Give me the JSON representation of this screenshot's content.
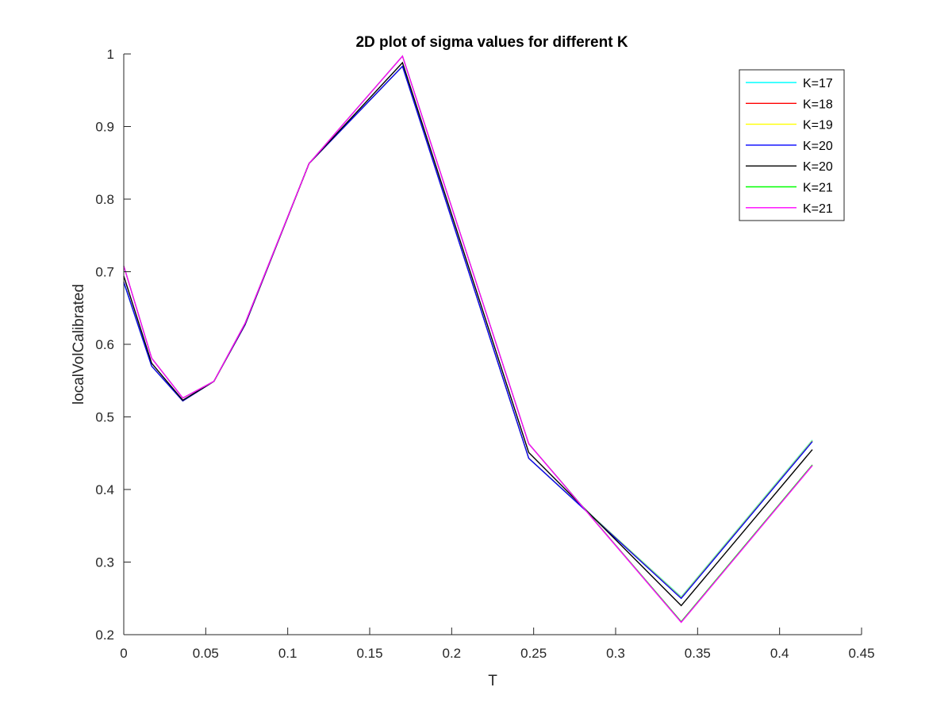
{
  "chart_data": {
    "type": "line",
    "title": "2D plot of sigma values for different K",
    "xlabel": "T",
    "ylabel": "localVolCalibrated",
    "xlim": [
      0,
      0.45
    ],
    "ylim": [
      0.2,
      1
    ],
    "xticks": [
      "0",
      "0.05",
      "0.1",
      "0.15",
      "0.2",
      "0.25",
      "0.3",
      "0.35",
      "0.4",
      "0.45"
    ],
    "yticks": [
      "0.2",
      "0.3",
      "0.4",
      "0.5",
      "0.6",
      "0.7",
      "0.8",
      "0.9",
      "1"
    ],
    "grid": false,
    "legend_position": "top-right",
    "x": [
      0,
      0.017,
      0.036,
      0.055,
      0.074,
      0.113,
      0.17,
      0.247,
      0.34,
      0.42
    ],
    "series": [
      {
        "name": "K=17",
        "color": "#00ffff",
        "values": [
          0.685,
          0.57,
          0.522,
          0.549,
          0.627,
          0.849,
          0.983,
          0.443,
          0.252,
          0.468
        ]
      },
      {
        "name": "K=18",
        "color": "#ff0000",
        "values": [
          0.686,
          0.57,
          0.522,
          0.549,
          0.627,
          0.849,
          0.983,
          0.443,
          0.251,
          0.467
        ]
      },
      {
        "name": "K=19",
        "color": "#ffff00",
        "values": [
          0.686,
          0.57,
          0.522,
          0.549,
          0.627,
          0.849,
          0.983,
          0.443,
          0.251,
          0.467
        ]
      },
      {
        "name": "K=20",
        "color": "#0000ff",
        "values": [
          0.686,
          0.57,
          0.522,
          0.549,
          0.627,
          0.849,
          0.983,
          0.443,
          0.25,
          0.466
        ]
      },
      {
        "name": "K=20",
        "color": "#000000",
        "values": [
          0.694,
          0.574,
          0.523,
          0.549,
          0.628,
          0.849,
          0.988,
          0.451,
          0.24,
          0.455
        ]
      },
      {
        "name": "K=21",
        "color": "#00ff00",
        "values": [
          0.708,
          0.581,
          0.526,
          0.549,
          0.629,
          0.849,
          0.997,
          0.463,
          0.218,
          0.434
        ]
      },
      {
        "name": "K=21",
        "color": "#ff00ff",
        "values": [
          0.708,
          0.581,
          0.526,
          0.549,
          0.629,
          0.849,
          0.997,
          0.463,
          0.217,
          0.433
        ]
      }
    ]
  }
}
